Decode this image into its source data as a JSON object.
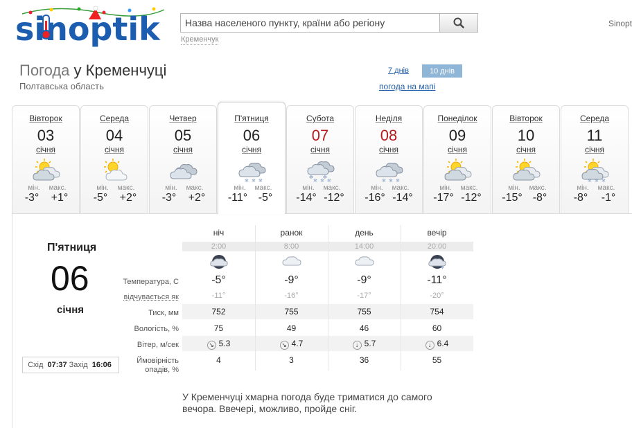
{
  "header": {
    "logo_text": "sinoptik",
    "search_placeholder": "Назва населеного пункту, країни або регіону",
    "search_hint": "Кременчук",
    "top_right_text": "Sinopt"
  },
  "page": {
    "title_prefix": "Погода",
    "title_city": "у Кременчуці",
    "region": "Полтавська область",
    "link_7days": "7 днів",
    "link_10days": "10 днів",
    "link_map": "погода на мапі"
  },
  "days": [
    {
      "name": "Вівторок",
      "date": "03",
      "month": "січня",
      "min_label": "мін.",
      "max_label": "макс.",
      "min": "-3°",
      "max": "+1°",
      "icon": "partly-cloudy-sun-icon",
      "weekend": false
    },
    {
      "name": "Середа",
      "date": "04",
      "month": "січня",
      "min_label": "мін.",
      "max_label": "макс.",
      "min": "-5°",
      "max": "+2°",
      "icon": "sun-cloud-icon",
      "weekend": false
    },
    {
      "name": "Четвер",
      "date": "05",
      "month": "січня",
      "min_label": "мін.",
      "max_label": "макс.",
      "min": "-3°",
      "max": "+2°",
      "icon": "cloudy-icon",
      "weekend": false
    },
    {
      "name": "П'ятниця",
      "date": "06",
      "month": "січня",
      "min_label": "мін.",
      "max_label": "макс.",
      "min": "-11°",
      "max": "-5°",
      "icon": "cloud-snow-icon",
      "weekend": false
    },
    {
      "name": "Субота",
      "date": "07",
      "month": "січня",
      "min_label": "мін.",
      "max_label": "макс.",
      "min": "-14°",
      "max": "-12°",
      "icon": "heavy-snow-icon",
      "weekend": true
    },
    {
      "name": "Неділя",
      "date": "08",
      "month": "січня",
      "min_label": "мін.",
      "max_label": "макс.",
      "min": "-16°",
      "max": "-14°",
      "icon": "cloud-snow-icon",
      "weekend": true
    },
    {
      "name": "Понеділок",
      "date": "09",
      "month": "січня",
      "min_label": "мін.",
      "max_label": "макс.",
      "min": "-17°",
      "max": "-12°",
      "icon": "partly-cloudy-sun-icon",
      "weekend": false
    },
    {
      "name": "Вівторок",
      "date": "10",
      "month": "січня",
      "min_label": "мін.",
      "max_label": "макс.",
      "min": "-15°",
      "max": "-8°",
      "icon": "partly-cloudy-sun-icon",
      "weekend": false
    },
    {
      "name": "Середа",
      "date": "11",
      "month": "січня",
      "min_label": "мін.",
      "max_label": "макс.",
      "min": "-8°",
      "max": "-1°",
      "icon": "sun-cloud-snow-icon",
      "weekend": false
    }
  ],
  "detail": {
    "day_name": "П'ятниця",
    "date": "06",
    "month": "січня",
    "sunrise_label": "Схід",
    "sunrise": "07:37",
    "sunset_label": "Захід",
    "sunset": "16:06",
    "labels": {
      "temperature": "Температура, С",
      "feels_like": "відчувається як",
      "pressure": "Тиск, мм",
      "humidity": "Вологість, %",
      "wind": "Вітер, м/сек",
      "precip_1": "Ймовірність",
      "precip_2": "опадів, %"
    },
    "periods": [
      {
        "name": "ніч",
        "time": "2:00",
        "icon": "night-cloud-icon",
        "temp": "-5°",
        "feels": "-11°",
        "pressure": "752",
        "humidity": "75",
        "wind_dir": "↘",
        "wind": "5.3",
        "precip": "4"
      },
      {
        "name": "ранок",
        "time": "8:00",
        "icon": "cloud-icon",
        "temp": "-9°",
        "feels": "-16°",
        "pressure": "755",
        "humidity": "49",
        "wind_dir": "↘",
        "wind": "4.7",
        "precip": "3"
      },
      {
        "name": "день",
        "time": "14:00",
        "icon": "cloud-icon",
        "temp": "-9°",
        "feels": "-17°",
        "pressure": "755",
        "humidity": "46",
        "wind_dir": "↓",
        "wind": "5.7",
        "precip": "36"
      },
      {
        "name": "вечір",
        "time": "20:00",
        "icon": "night-cloud-snow-icon",
        "temp": "-11°",
        "feels": "-20°",
        "pressure": "754",
        "humidity": "60",
        "wind_dir": "↓",
        "wind": "6.4",
        "precip": "55"
      }
    ],
    "description": "У Кременчуці хмарна погода буде триматися до самого вечора. Ввечері, можливо, пройде сніг."
  }
}
